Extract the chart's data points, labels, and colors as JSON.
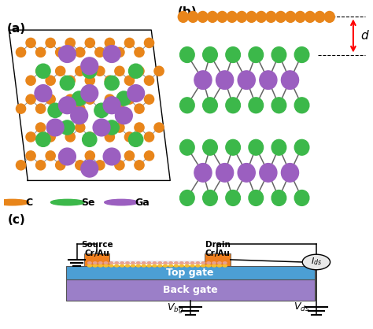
{
  "fig_width": 4.74,
  "fig_height": 4.18,
  "dpi": 100,
  "bg_color": "#ffffff",
  "panel_labels": [
    "(a)",
    "(b)",
    "(c)"
  ],
  "panel_label_fontsize": 11,
  "legend_items": [
    {
      "label": "C",
      "color": "#E8851A"
    },
    {
      "label": "Se",
      "color": "#3CB84A"
    },
    {
      "label": "Ga",
      "color": "#9B5FC0"
    }
  ],
  "legend_fontsize": 9,
  "gate_colors": {
    "top_gate": "#4C9FD4",
    "back_gate": "#9B7FC8",
    "electrode": "#F08020"
  },
  "text_top_gate": "Top gate",
  "text_back_gate": "Back gate",
  "c_color": "#E8851A",
  "se_color": "#3CB84A",
  "ga_color": "#9B5FC0",
  "graphene_color": "#E8851A",
  "bond_color": "#888888"
}
